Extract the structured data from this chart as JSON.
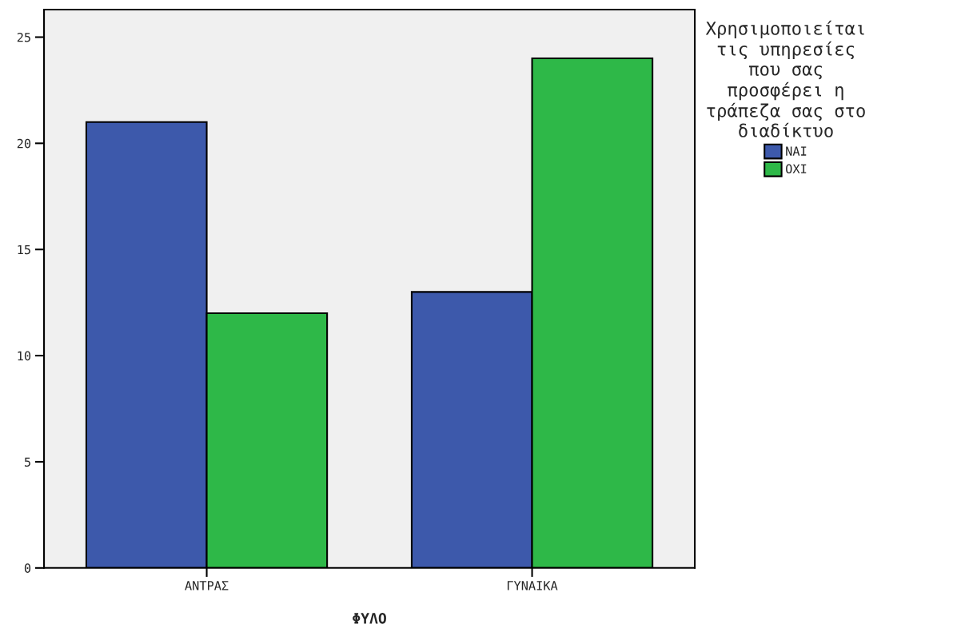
{
  "chart_data": {
    "type": "bar",
    "xlabel": "ΦΥΛΟ",
    "legend_title": "Χρησιμοποιείται\nτις υπηρεσίες\nπου σας\nπροσφέρει η\nτράπεζα σας στο\nδιαδίκτυο",
    "categories": [
      "ΑΝΤΡΑΣ",
      "ΓΥΝΑΙΚΑ"
    ],
    "series": [
      {
        "name": "ΝΑΙ",
        "color": "#3d59ab",
        "values": [
          21,
          13
        ]
      },
      {
        "name": "ΟΧΙ",
        "color": "#2eb848",
        "values": [
          12,
          24
        ]
      }
    ],
    "ylim": [
      0,
      26.3
    ],
    "yticks": [
      0,
      5,
      10,
      15,
      20,
      25
    ],
    "grid": false,
    "legend": "top right"
  }
}
